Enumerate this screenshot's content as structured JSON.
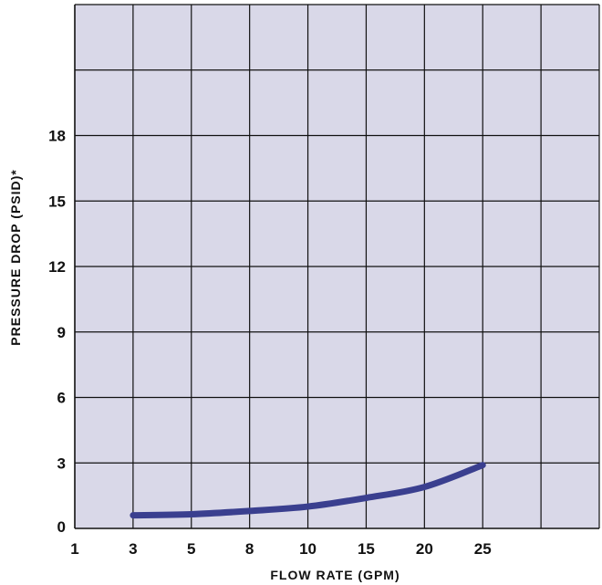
{
  "chart_data": {
    "type": "line",
    "title": "",
    "xlabel": "FLOW RATE (GPM)",
    "ylabel": "PRESSURE DROP (PSID)*",
    "x_ticks": [
      "1",
      "3",
      "5",
      "8",
      "10",
      "15",
      "20",
      "25"
    ],
    "y_ticks": [
      "0",
      "3",
      "6",
      "9",
      "12",
      "15",
      "18"
    ],
    "y_grid_extra_rows": 2,
    "x_grid_extra_cols": 1,
    "ylim": [
      0,
      24
    ],
    "grid": true,
    "legend": "none",
    "series": [
      {
        "x": [
          3,
          5,
          8,
          10,
          15,
          20,
          25
        ],
        "y": [
          0.6,
          0.65,
          0.8,
          1.0,
          1.4,
          1.9,
          2.9
        ],
        "color": "#3a3f8f"
      }
    ],
    "colors": {
      "plot_background": "#d9d8e8",
      "grid": "#111111",
      "line": "#3a3f8f"
    }
  }
}
